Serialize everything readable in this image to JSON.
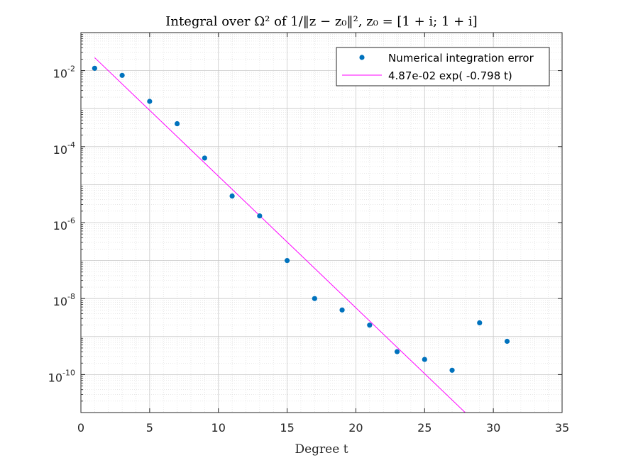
{
  "chart_data": {
    "type": "scatter",
    "title": "Integral over Ω² of 1/‖z − z₀‖², z₀ = [1 + i; 1 + i]",
    "xlabel": "Degree t",
    "ylabel": "",
    "xlim": [
      0,
      35
    ],
    "ylim_log10": [
      -11,
      -1
    ],
    "yscale": "log",
    "grid": true,
    "minor_grid": true,
    "legend_position": "top-right",
    "x_ticks": [
      "0",
      "5",
      "10",
      "15",
      "20",
      "25",
      "30",
      "35"
    ],
    "y_ticks": [
      {
        "base": "10",
        "exp": "-2"
      },
      {
        "base": "10",
        "exp": "-4"
      },
      {
        "base": "10",
        "exp": "-6"
      },
      {
        "base": "10",
        "exp": "-8"
      },
      {
        "base": "10",
        "exp": "-10"
      }
    ],
    "series": [
      {
        "name": "Numerical integration error",
        "kind": "points",
        "color": "#0072BD",
        "x": [
          1,
          3,
          5,
          7,
          9,
          11,
          13,
          15,
          17,
          19,
          21,
          23,
          25,
          27,
          29,
          31
        ],
        "y": [
          0.0115,
          0.0075,
          0.00155,
          0.0004,
          5e-05,
          5e-06,
          1.5e-06,
          1e-07,
          1e-08,
          5e-09,
          2e-09,
          4e-10,
          2.5e-10,
          1.3e-10,
          2.3e-09,
          7.5e-10
        ]
      },
      {
        "name": "4.87e-02 exp( -0.798 t)",
        "kind": "fit",
        "color": "#FF00FF",
        "a": 0.0487,
        "b": -0.798,
        "x_range": [
          1,
          31
        ]
      }
    ]
  }
}
